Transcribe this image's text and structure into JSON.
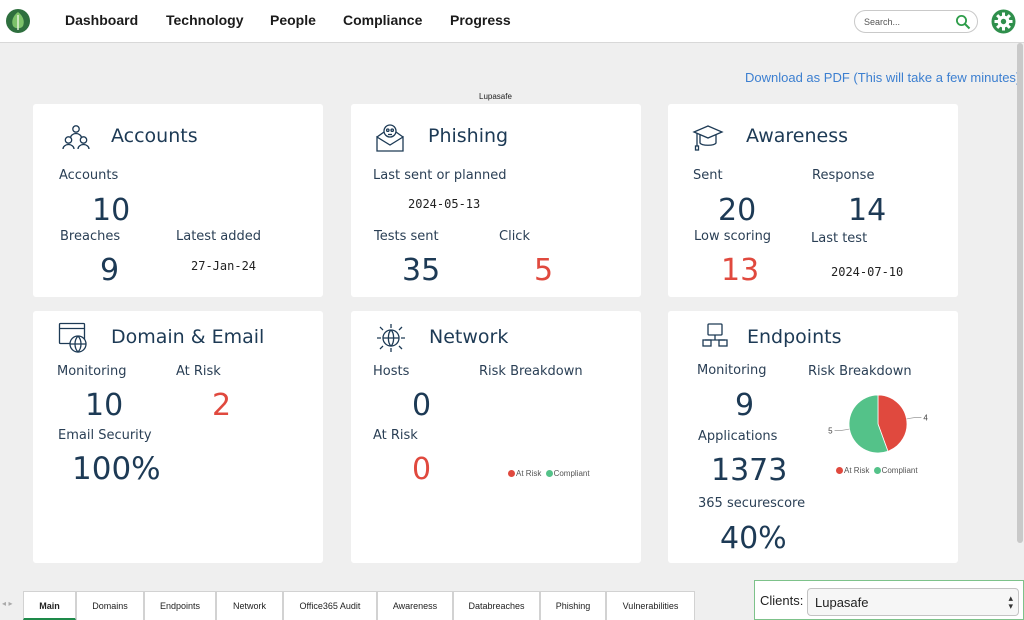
{
  "nav": {
    "items": [
      "Dashboard",
      "Technology",
      "People",
      "Compliance",
      "Progress"
    ],
    "search_placeholder": "Search..."
  },
  "download_label": "Download as PDF (This will take a few minutes)",
  "page_caption": "Lupasafe",
  "cards": {
    "accounts": {
      "title": "Accounts",
      "accounts_label": "Accounts",
      "accounts_value": "10",
      "breaches_label": "Breaches",
      "breaches_value": "9",
      "latest_label": "Latest added",
      "latest_value": "27-Jan-24"
    },
    "phishing": {
      "title": "Phishing",
      "last_label": "Last sent or planned",
      "last_value": "2024-05-13",
      "tests_label": "Tests sent",
      "tests_value": "35",
      "click_label": "Click",
      "click_value": "5"
    },
    "awareness": {
      "title": "Awareness",
      "sent_label": "Sent",
      "sent_value": "20",
      "response_label": "Response",
      "response_value": "14",
      "low_label": "Low scoring",
      "low_value": "13",
      "last_label": "Last test",
      "last_value": "2024-07-10"
    },
    "domain": {
      "title": "Domain & Email",
      "monitoring_label": "Monitoring",
      "monitoring_value": "10",
      "risk_label": "At Risk",
      "risk_value": "2",
      "email_label": "Email Security",
      "email_value": "100%"
    },
    "network": {
      "title": "Network",
      "hosts_label": "Hosts",
      "hosts_value": "0",
      "breakdown_label": "Risk Breakdown",
      "risk_label": "At Risk",
      "risk_value": "0",
      "legend": [
        "At Risk",
        "Compliant"
      ]
    },
    "endpoints": {
      "title": "Endpoints",
      "monitoring_label": "Monitoring",
      "monitoring_value": "9",
      "breakdown_label": "Risk Breakdown",
      "apps_label": "Applications",
      "apps_value": "1373",
      "secure_label": "365 securescore",
      "secure_value": "40%",
      "legend": [
        "At Risk",
        "Compliant"
      ]
    }
  },
  "colors": {
    "risk": "#e0493e",
    "compliant": "#54c289",
    "accent": "#1e8a4a"
  },
  "chart_data": {
    "type": "pie",
    "categories": [
      "At Risk",
      "Compliant"
    ],
    "values": [
      4,
      5
    ],
    "data_labels": [
      "4",
      "5"
    ],
    "legend_position": "bottom"
  },
  "tabs": [
    "Main",
    "Domains",
    "Endpoints",
    "Network",
    "Office365 Audit",
    "Awareness",
    "Databreaches",
    "Phishing",
    "Vulnerabilities"
  ],
  "active_tab": "Main",
  "clients": {
    "label": "Clients:",
    "value": "Lupasafe"
  }
}
